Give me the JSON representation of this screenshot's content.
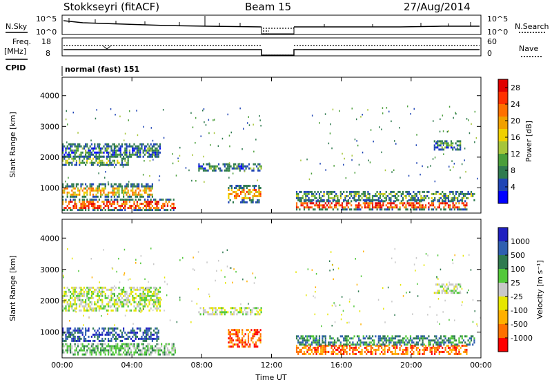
{
  "header": {
    "radar": "Stokkseyri (fitACF)",
    "beam": "Beam 15",
    "date": "27/Aug/2014"
  },
  "side_labels": {
    "nsky": "N.Sky",
    "nsearch": "N.Search",
    "freq_top": "Freq.",
    "freq_unit": "[MHz]",
    "nave": "Nave",
    "cpid": "CPID"
  },
  "noise_axis": {
    "left_top": "10^5",
    "left_bottom": "10^0",
    "right_top": "10^5",
    "right_bottom": "10^0"
  },
  "freq_axis": {
    "left_top": "18",
    "left_bottom": "8",
    "right_top": "60",
    "right_bottom": "0"
  },
  "cpid_text": "normal (fast) 151",
  "colors": {
    "power": [
      "#0000ff",
      "#1f45b5",
      "#2f7a4f",
      "#4a9e3a",
      "#a6c53a",
      "#f0d000",
      "#f0a000",
      "#ff7000",
      "#ff3000",
      "#e00000"
    ],
    "velocity": [
      "#2020c0",
      "#2f5fb0",
      "#2f7a4f",
      "#52c83a",
      "#c8c8c8",
      "#e6e600",
      "#ffb000",
      "#ff7000",
      "#ff0000"
    ]
  },
  "chart_data": [
    {
      "type": "heatmap",
      "name": "power-panel",
      "title": "",
      "xlabel": "",
      "ylabel": "Slant Range [km]",
      "xlim": [
        0,
        24
      ],
      "ylim": [
        180,
        4600
      ],
      "x_ticks": [
        "00:00",
        "04:00",
        "08:00",
        "12:00",
        "16:00",
        "20:00",
        "00:00"
      ],
      "y_ticks": [
        1000,
        2000,
        3000,
        4000
      ],
      "colorbar": {
        "label": "Power [dB]",
        "ticks": [
          4,
          8,
          12,
          16,
          20,
          24,
          28
        ],
        "range": [
          0,
          30
        ]
      },
      "gap_hours": [
        11.5,
        13.3
      ],
      "regions": [
        {
          "t0": 0.0,
          "t1": 5.2,
          "r0": 700,
          "r1": 1150,
          "level": 18
        },
        {
          "t0": 0.0,
          "t1": 6.5,
          "r0": 300,
          "r1": 650,
          "level": 26
        },
        {
          "t0": 0.0,
          "t1": 3.8,
          "r0": 1750,
          "r1": 2050,
          "level": 10
        },
        {
          "t0": 0.0,
          "t1": 5.6,
          "r0": 2000,
          "r1": 2450,
          "level": 6
        },
        {
          "t0": 7.8,
          "t1": 11.4,
          "r0": 1580,
          "r1": 1800,
          "level": 8
        },
        {
          "t0": 9.5,
          "t1": 11.4,
          "r0": 550,
          "r1": 1100,
          "level": 20
        },
        {
          "t0": 13.4,
          "t1": 23.2,
          "r0": 280,
          "r1": 600,
          "level": 27
        },
        {
          "t0": 13.4,
          "t1": 23.6,
          "r0": 600,
          "r1": 900,
          "level": 9
        },
        {
          "t0": 21.3,
          "t1": 22.8,
          "r0": 2250,
          "r1": 2550,
          "level": 8
        }
      ]
    },
    {
      "type": "heatmap",
      "name": "velocity-panel",
      "title": "",
      "xlabel": "Time UT",
      "ylabel": "Slant Range [km]",
      "xlim": [
        0,
        24
      ],
      "ylim": [
        180,
        4600
      ],
      "x_ticks": [
        "00:00",
        "04:00",
        "08:00",
        "12:00",
        "16:00",
        "20:00",
        "00:00"
      ],
      "y_ticks": [
        1000,
        2000,
        3000,
        4000
      ],
      "colorbar": {
        "label": "Velocity [m s⁻¹]",
        "ticks": [
          "1000",
          "500",
          "100",
          "25",
          "-25",
          "-100",
          "-500",
          "-1000"
        ]
      },
      "gap_hours": [
        11.5,
        13.3
      ],
      "regions": [
        {
          "t0": 0.0,
          "t1": 5.5,
          "r0": 700,
          "r1": 1150,
          "level": 1
        },
        {
          "t0": 0.0,
          "t1": 6.5,
          "r0": 300,
          "r1": 650,
          "level": 3
        },
        {
          "t0": 0.0,
          "t1": 5.6,
          "r0": 1700,
          "r1": 2450,
          "level": 4
        },
        {
          "t0": 7.8,
          "t1": 11.4,
          "r0": 1580,
          "r1": 1800,
          "level": 4
        },
        {
          "t0": 9.5,
          "t1": 11.4,
          "r0": 550,
          "r1": 1100,
          "level": 7
        },
        {
          "t0": 13.4,
          "t1": 23.2,
          "r0": 280,
          "r1": 600,
          "level": 7
        },
        {
          "t0": 13.4,
          "t1": 23.6,
          "r0": 600,
          "r1": 900,
          "level": 2
        },
        {
          "t0": 21.3,
          "t1": 22.8,
          "r0": 2250,
          "r1": 2550,
          "level": 4
        }
      ]
    }
  ]
}
